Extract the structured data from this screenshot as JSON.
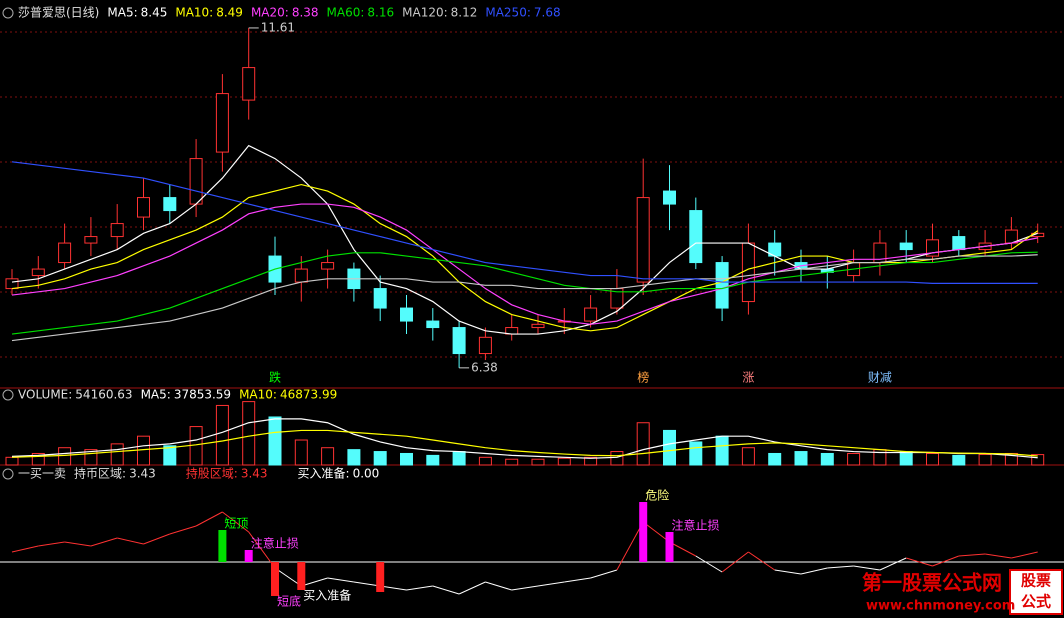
{
  "chart_data": [
    {
      "type": "candlestick",
      "title": "莎普爱思(日线)",
      "up_color": "#ff3232",
      "down_color": "#54fcfc",
      "ylim": [
        6.07,
        12.04
      ],
      "open": [
        7.6,
        7.8,
        8.0,
        8.3,
        8.4,
        8.7,
        9.0,
        8.9,
        9.7,
        10.5,
        8.1,
        7.7,
        7.9,
        7.9,
        7.6,
        7.3,
        7.1,
        7.0,
        6.6,
        6.9,
        7.0,
        7.1,
        7.1,
        7.3,
        7.7,
        9.1,
        8.8,
        8.0,
        7.4,
        8.3,
        8.0,
        7.9,
        7.8,
        8.0,
        8.3,
        8.1,
        8.4,
        8.2,
        8.3,
        8.4
      ],
      "high": [
        7.9,
        8.1,
        8.6,
        8.7,
        8.9,
        9.3,
        9.2,
        9.9,
        10.9,
        11.61,
        8.4,
        8.1,
        8.2,
        8.0,
        7.8,
        7.5,
        7.3,
        7.1,
        7.0,
        7.2,
        7.2,
        7.3,
        7.5,
        7.9,
        9.6,
        9.5,
        9.0,
        8.1,
        8.6,
        8.5,
        8.2,
        8.1,
        8.2,
        8.5,
        8.5,
        8.6,
        8.5,
        8.5,
        8.7,
        8.6
      ],
      "low": [
        7.5,
        7.6,
        7.9,
        8.1,
        8.2,
        8.5,
        8.6,
        8.7,
        9.4,
        10.2,
        7.5,
        7.4,
        7.6,
        7.4,
        7.1,
        6.9,
        6.8,
        6.38,
        6.5,
        6.8,
        6.9,
        6.9,
        7.0,
        7.2,
        7.5,
        8.5,
        7.9,
        7.1,
        7.2,
        7.8,
        7.7,
        7.6,
        7.7,
        7.8,
        8.0,
        8.0,
        8.1,
        8.1,
        8.2,
        8.3
      ],
      "close": [
        7.75,
        7.9,
        8.3,
        8.4,
        8.6,
        9.0,
        8.8,
        9.6,
        10.6,
        11.0,
        7.7,
        7.9,
        8.0,
        7.6,
        7.3,
        7.1,
        7.0,
        6.6,
        6.85,
        7.0,
        7.05,
        7.1,
        7.3,
        7.6,
        9.0,
        8.9,
        8.0,
        7.3,
        8.3,
        8.1,
        7.9,
        7.85,
        8.0,
        8.3,
        8.2,
        8.35,
        8.2,
        8.3,
        8.5,
        8.45
      ],
      "series": [
        {
          "name": "MA5:",
          "value": 8.45,
          "color": "#ffffff",
          "values": [
            7.7,
            7.75,
            7.9,
            8.05,
            8.2,
            8.45,
            8.6,
            8.9,
            9.3,
            9.8,
            9.6,
            9.3,
            8.9,
            8.2,
            7.7,
            7.6,
            7.4,
            7.1,
            6.95,
            6.9,
            6.9,
            6.95,
            7.05,
            7.25,
            7.6,
            8.0,
            8.3,
            8.3,
            8.3,
            8.1,
            7.9,
            7.9,
            8.0,
            8.0,
            8.05,
            8.15,
            8.2,
            8.25,
            8.3,
            8.45
          ]
        },
        {
          "name": "MA10:",
          "value": 8.49,
          "color": "#ffff00",
          "values": [
            7.6,
            7.65,
            7.75,
            7.9,
            8.0,
            8.2,
            8.35,
            8.5,
            8.7,
            9.0,
            9.1,
            9.2,
            9.1,
            8.9,
            8.6,
            8.4,
            8.1,
            7.7,
            7.4,
            7.2,
            7.1,
            7.0,
            6.95,
            7.0,
            7.2,
            7.4,
            7.6,
            7.7,
            7.9,
            8.0,
            8.1,
            8.1,
            8.0,
            8.0,
            8.0,
            8.05,
            8.1,
            8.15,
            8.2,
            8.49
          ]
        },
        {
          "name": "MA20:",
          "value": 8.38,
          "color": "#ff40ff",
          "values": [
            7.5,
            7.55,
            7.6,
            7.7,
            7.8,
            7.95,
            8.1,
            8.3,
            8.5,
            8.75,
            8.85,
            8.9,
            8.9,
            8.85,
            8.7,
            8.5,
            8.2,
            7.9,
            7.6,
            7.35,
            7.2,
            7.1,
            7.05,
            7.1,
            7.25,
            7.4,
            7.5,
            7.6,
            7.75,
            7.85,
            7.95,
            8.0,
            8.05,
            8.05,
            8.1,
            8.15,
            8.2,
            8.25,
            8.3,
            8.38
          ]
        },
        {
          "name": "MA60:",
          "value": 8.16,
          "color": "#00e000",
          "values": [
            6.9,
            6.95,
            7.0,
            7.05,
            7.1,
            7.2,
            7.3,
            7.45,
            7.6,
            7.75,
            7.9,
            8.0,
            8.1,
            8.15,
            8.15,
            8.1,
            8.05,
            8.0,
            7.95,
            7.85,
            7.75,
            7.65,
            7.6,
            7.55,
            7.55,
            7.6,
            7.6,
            7.6,
            7.7,
            7.75,
            7.8,
            7.85,
            7.9,
            7.95,
            8.0,
            8.0,
            8.05,
            8.1,
            8.15,
            8.16
          ]
        },
        {
          "name": "MA120:",
          "value": 8.12,
          "color": "#c8c8c8",
          "values": [
            6.8,
            6.85,
            6.9,
            6.95,
            7.0,
            7.05,
            7.1,
            7.2,
            7.3,
            7.45,
            7.6,
            7.7,
            7.75,
            7.75,
            7.75,
            7.75,
            7.7,
            7.7,
            7.65,
            7.65,
            7.6,
            7.6,
            7.6,
            7.6,
            7.65,
            7.7,
            7.75,
            7.75,
            7.8,
            7.85,
            7.9,
            7.95,
            8.0,
            8.0,
            8.05,
            8.05,
            8.1,
            8.1,
            8.1,
            8.12
          ]
        },
        {
          "name": "MA250:",
          "value": 7.68,
          "color": "#3050ff",
          "values": [
            9.55,
            9.5,
            9.45,
            9.4,
            9.35,
            9.3,
            9.2,
            9.1,
            9.0,
            8.9,
            8.8,
            8.7,
            8.6,
            8.5,
            8.4,
            8.3,
            8.2,
            8.1,
            8.0,
            7.95,
            7.9,
            7.85,
            7.8,
            7.8,
            7.75,
            7.75,
            7.75,
            7.7,
            7.7,
            7.7,
            7.7,
            7.7,
            7.7,
            7.7,
            7.7,
            7.68,
            7.68,
            7.68,
            7.68,
            7.68
          ]
        }
      ],
      "annotations": [
        {
          "index": 9,
          "value": 11.61
        },
        {
          "index": 17,
          "value": 6.38
        }
      ],
      "markers": [
        {
          "text": "跌",
          "index": 10,
          "color": "#00ff00"
        },
        {
          "text": "榜",
          "index": 24,
          "color": "#ffa040"
        },
        {
          "text": "涨",
          "index": 28,
          "color": "#ff8080"
        },
        {
          "text": "财减",
          "index": 33,
          "color": "#80c0ff"
        }
      ]
    },
    {
      "type": "bar",
      "title": "VOLUME:",
      "value": 54160.63,
      "ylim": [
        0,
        380000
      ],
      "values": [
        40000,
        60000,
        90000,
        80000,
        110000,
        150000,
        100000,
        200000,
        310000,
        330000,
        250000,
        130000,
        90000,
        80000,
        70000,
        60000,
        50000,
        70000,
        40000,
        30000,
        30000,
        35000,
        40000,
        70000,
        220000,
        180000,
        120000,
        150000,
        90000,
        60000,
        70000,
        60000,
        60000,
        80000,
        70000,
        60000,
        50000,
        55000,
        60000,
        54160.63
      ],
      "series": [
        {
          "name": "MA5:",
          "value": 37853.59,
          "color": "#ffffff",
          "values": [
            45000,
            50000,
            60000,
            70000,
            80000,
            100000,
            110000,
            130000,
            170000,
            220000,
            240000,
            240000,
            220000,
            160000,
            120000,
            90000,
            75000,
            70000,
            60000,
            50000,
            45000,
            40000,
            35000,
            40000,
            80000,
            110000,
            130000,
            150000,
            150000,
            120000,
            100000,
            80000,
            70000,
            65000,
            65000,
            65000,
            60000,
            60000,
            50000,
            37853.59
          ]
        },
        {
          "name": "MA10:",
          "value": 46873.99,
          "color": "#ffff00",
          "values": [
            40000,
            45000,
            50000,
            60000,
            70000,
            80000,
            90000,
            105000,
            125000,
            150000,
            170000,
            180000,
            180000,
            170000,
            160000,
            150000,
            130000,
            110000,
            90000,
            75000,
            65000,
            57000,
            50000,
            48000,
            60000,
            75000,
            90000,
            100000,
            110000,
            115000,
            110000,
            100000,
            90000,
            80000,
            70000,
            65000,
            62000,
            60000,
            58000,
            46873.99
          ]
        }
      ]
    },
    {
      "type": "line",
      "title": "一买一卖",
      "ylim": [
        -25,
        35
      ],
      "pos_color": "#ff3232",
      "neg_color": "#ffffff",
      "legend": [
        {
          "name": "持币区域:",
          "value": 3.43,
          "color": "#dddddd"
        },
        {
          "name": "持股区域:",
          "value": 3.43,
          "color": "#ff3232"
        },
        {
          "name": "买入准备:",
          "value": 0,
          "value_label": "0.00",
          "color": "#ffffff"
        }
      ],
      "values": [
        5,
        8,
        10,
        8,
        12,
        9,
        14,
        18,
        25,
        15,
        -3,
        -12,
        -8,
        -10,
        -12,
        -14,
        -12,
        -16,
        -10,
        -14,
        -12,
        -10,
        -8,
        -4,
        20,
        10,
        3,
        -5,
        5,
        -4,
        -6,
        -3,
        -2,
        -4,
        2,
        -2,
        3,
        4,
        2,
        5
      ],
      "signals": [
        {
          "label": "短顶",
          "index": 8,
          "value": 16,
          "color": "#00e000",
          "label_color": "#00ff00"
        },
        {
          "label": "注意止损",
          "index": 9,
          "value": 6,
          "color": "#ff00ff",
          "label_color": "#ff40ff"
        },
        {
          "label": "短底",
          "index": 10,
          "value": -17,
          "color": "#ff2020",
          "label_color": "#ff40ff"
        },
        {
          "label": "买入准备",
          "index": 11,
          "value": -14,
          "color": "#ff2020",
          "label_color": "#ffffff"
        },
        {
          "index": 14,
          "value": -15,
          "color": "#ff2020"
        },
        {
          "label": "危险",
          "index": 24,
          "value": 30,
          "color": "#ff00ff",
          "label_color": "#ffff80"
        },
        {
          "label": "注意止损",
          "index": 25,
          "value": 15,
          "color": "#ff00ff",
          "label_color": "#ff40ff"
        }
      ]
    }
  ],
  "watermark": {
    "title": "第一股票公式网",
    "url": "www.chnmoney.com",
    "badge": [
      "股票",
      "公式"
    ]
  }
}
